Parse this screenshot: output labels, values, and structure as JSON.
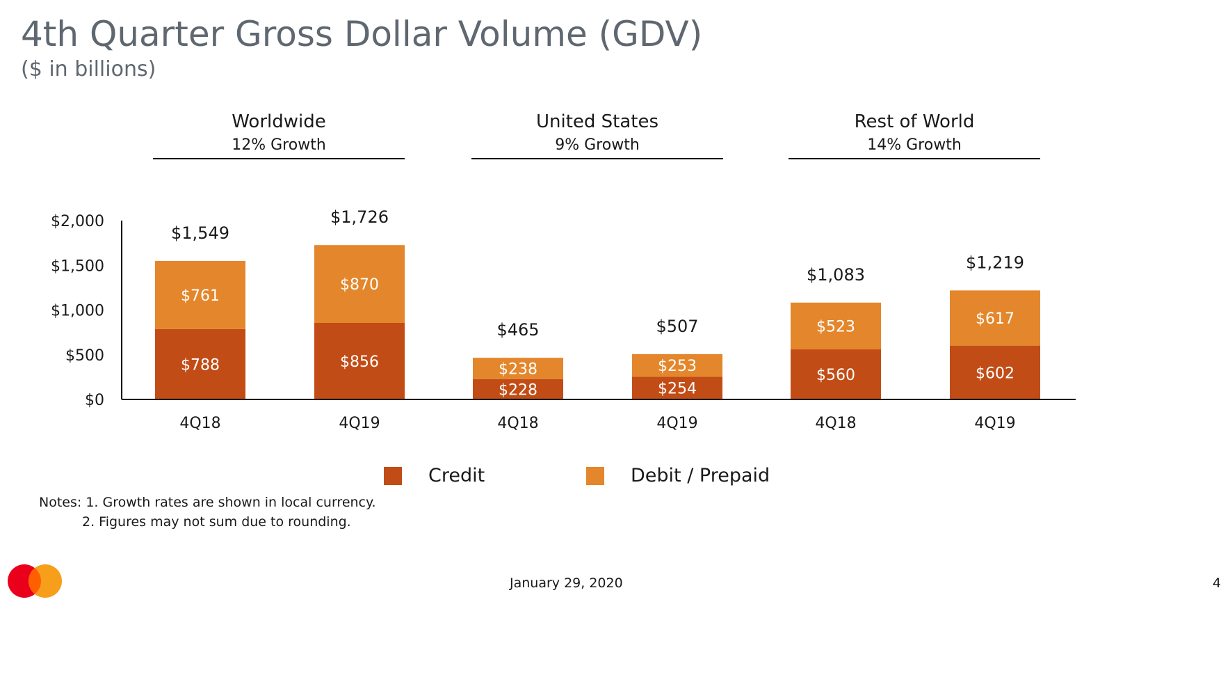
{
  "title": "4th Quarter Gross Dollar Volume (GDV)",
  "subtitle": "($ in billions)",
  "colors": {
    "credit": "#c24c16",
    "debit": "#e4862b",
    "title": "#5f6770"
  },
  "groups": [
    {
      "name": "Worldwide",
      "growth": "12% Growth"
    },
    {
      "name": "United States",
      "growth": "9% Growth"
    },
    {
      "name": "Rest of World",
      "growth": "14% Growth"
    }
  ],
  "chart_data": {
    "type": "bar",
    "stacked": true,
    "categories": [
      "4Q18",
      "4Q19",
      "4Q18",
      "4Q19",
      "4Q18",
      "4Q19"
    ],
    "series": [
      {
        "name": "Credit",
        "values": [
          788,
          856,
          228,
          254,
          560,
          602
        ],
        "labels": [
          "$788",
          "$856",
          "$228",
          "$254",
          "$560",
          "$602"
        ]
      },
      {
        "name": "Debit / Prepaid",
        "values": [
          761,
          870,
          238,
          253,
          523,
          617
        ],
        "labels": [
          "$761",
          "$870",
          "$238",
          "$253",
          "$523",
          "$617"
        ]
      }
    ],
    "totals": [
      1549,
      1726,
      465,
      507,
      1083,
      1219
    ],
    "total_labels": [
      "$1,549",
      "$1,726",
      "$465",
      "$507",
      "$1,083",
      "$1,219"
    ],
    "ylim": [
      0,
      2000
    ],
    "yticks": [
      0,
      500,
      1000,
      1500,
      2000
    ],
    "ytick_labels": [
      "$0",
      "$500",
      "$1,000",
      "$1,500",
      "$2,000"
    ],
    "grid": false
  },
  "legend": {
    "credit": "Credit",
    "debit": "Debit / Prepaid"
  },
  "notes": [
    "Notes: 1.  Growth rates are shown in local currency.",
    "2.  Figures may not sum due to rounding."
  ],
  "footer": {
    "date": "January 29, 2020",
    "page": "4"
  }
}
